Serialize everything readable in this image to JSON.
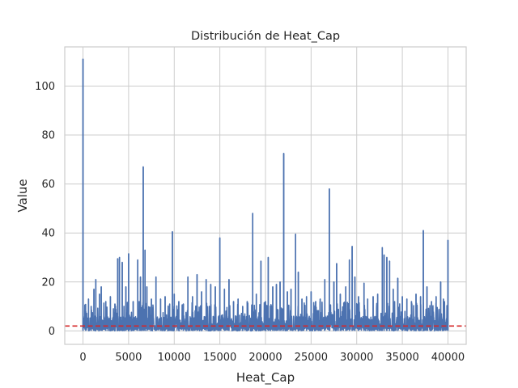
{
  "chart_data": {
    "type": "line",
    "title": "Distribución de Heat_Cap",
    "xlabel": "Heat_Cap",
    "ylabel": "Value",
    "xlim": [
      -2000,
      42000
    ],
    "ylim": [
      -5.5,
      116
    ],
    "xticks": [
      0,
      5000,
      10000,
      15000,
      20000,
      25000,
      30000,
      35000,
      40000
    ],
    "yticks": [
      0,
      20,
      40,
      60,
      80,
      100
    ],
    "grid": true,
    "series": [
      {
        "color": "#4c72b0",
        "baseline": 0.5,
        "noise_level": 5,
        "x_range": [
          0,
          40000
        ],
        "peaks": [
          {
            "x": 0,
            "y": 111
          },
          {
            "x": 300,
            "y": 8
          },
          {
            "x": 600,
            "y": 13
          },
          {
            "x": 900,
            "y": 10
          },
          {
            "x": 1200,
            "y": 17
          },
          {
            "x": 1400,
            "y": 21
          },
          {
            "x": 1800,
            "y": 15
          },
          {
            "x": 2000,
            "y": 18
          },
          {
            "x": 2500,
            "y": 12
          },
          {
            "x": 3000,
            "y": 14
          },
          {
            "x": 3500,
            "y": 11
          },
          {
            "x": 3800,
            "y": 29.5
          },
          {
            "x": 4000,
            "y": 30
          },
          {
            "x": 4300,
            "y": 28
          },
          {
            "x": 4700,
            "y": 18
          },
          {
            "x": 5000,
            "y": 31.5
          },
          {
            "x": 5500,
            "y": 12
          },
          {
            "x": 6000,
            "y": 29
          },
          {
            "x": 6300,
            "y": 22
          },
          {
            "x": 6600,
            "y": 67
          },
          {
            "x": 6800,
            "y": 33
          },
          {
            "x": 7000,
            "y": 18
          },
          {
            "x": 7500,
            "y": 13
          },
          {
            "x": 8000,
            "y": 22
          },
          {
            "x": 8500,
            "y": 13
          },
          {
            "x": 9000,
            "y": 14
          },
          {
            "x": 9500,
            "y": 11
          },
          {
            "x": 9800,
            "y": 40.5
          },
          {
            "x": 10000,
            "y": 15
          },
          {
            "x": 10500,
            "y": 12
          },
          {
            "x": 11000,
            "y": 11
          },
          {
            "x": 11500,
            "y": 22
          },
          {
            "x": 12000,
            "y": 14
          },
          {
            "x": 12500,
            "y": 23
          },
          {
            "x": 13000,
            "y": 16
          },
          {
            "x": 13500,
            "y": 21
          },
          {
            "x": 14000,
            "y": 19
          },
          {
            "x": 14500,
            "y": 18
          },
          {
            "x": 15000,
            "y": 38
          },
          {
            "x": 15500,
            "y": 17
          },
          {
            "x": 16000,
            "y": 21
          },
          {
            "x": 16500,
            "y": 12
          },
          {
            "x": 17000,
            "y": 13
          },
          {
            "x": 17500,
            "y": 10
          },
          {
            "x": 18000,
            "y": 12
          },
          {
            "x": 18600,
            "y": 48
          },
          {
            "x": 19000,
            "y": 15
          },
          {
            "x": 19500,
            "y": 28.5
          },
          {
            "x": 20000,
            "y": 12
          },
          {
            "x": 20300,
            "y": 30
          },
          {
            "x": 20800,
            "y": 18
          },
          {
            "x": 21200,
            "y": 19
          },
          {
            "x": 21600,
            "y": 20
          },
          {
            "x": 22000,
            "y": 72.5
          },
          {
            "x": 22400,
            "y": 16
          },
          {
            "x": 22800,
            "y": 17
          },
          {
            "x": 23300,
            "y": 39.5
          },
          {
            "x": 23600,
            "y": 24
          },
          {
            "x": 24000,
            "y": 13
          },
          {
            "x": 24500,
            "y": 14
          },
          {
            "x": 25000,
            "y": 16
          },
          {
            "x": 25500,
            "y": 12
          },
          {
            "x": 26000,
            "y": 13
          },
          {
            "x": 26500,
            "y": 21
          },
          {
            "x": 27000,
            "y": 58
          },
          {
            "x": 27500,
            "y": 20
          },
          {
            "x": 27800,
            "y": 27.5
          },
          {
            "x": 28200,
            "y": 15
          },
          {
            "x": 28800,
            "y": 18
          },
          {
            "x": 29200,
            "y": 29
          },
          {
            "x": 29500,
            "y": 34.5
          },
          {
            "x": 29800,
            "y": 22
          },
          {
            "x": 30200,
            "y": 14
          },
          {
            "x": 30800,
            "y": 19.5
          },
          {
            "x": 31200,
            "y": 13
          },
          {
            "x": 31800,
            "y": 14
          },
          {
            "x": 32300,
            "y": 15
          },
          {
            "x": 32800,
            "y": 34
          },
          {
            "x": 33000,
            "y": 31
          },
          {
            "x": 33300,
            "y": 30
          },
          {
            "x": 33600,
            "y": 28.5
          },
          {
            "x": 34000,
            "y": 17
          },
          {
            "x": 34500,
            "y": 21.5
          },
          {
            "x": 35000,
            "y": 14
          },
          {
            "x": 35500,
            "y": 13
          },
          {
            "x": 36000,
            "y": 12
          },
          {
            "x": 36500,
            "y": 15
          },
          {
            "x": 37000,
            "y": 14
          },
          {
            "x": 37300,
            "y": 41
          },
          {
            "x": 37700,
            "y": 18
          },
          {
            "x": 38200,
            "y": 12
          },
          {
            "x": 38700,
            "y": 14
          },
          {
            "x": 39200,
            "y": 20
          },
          {
            "x": 39500,
            "y": 13
          },
          {
            "x": 40000,
            "y": 37
          }
        ]
      }
    ],
    "reference_line": {
      "y": 2,
      "color": "#d62728",
      "style": "dashed"
    }
  }
}
